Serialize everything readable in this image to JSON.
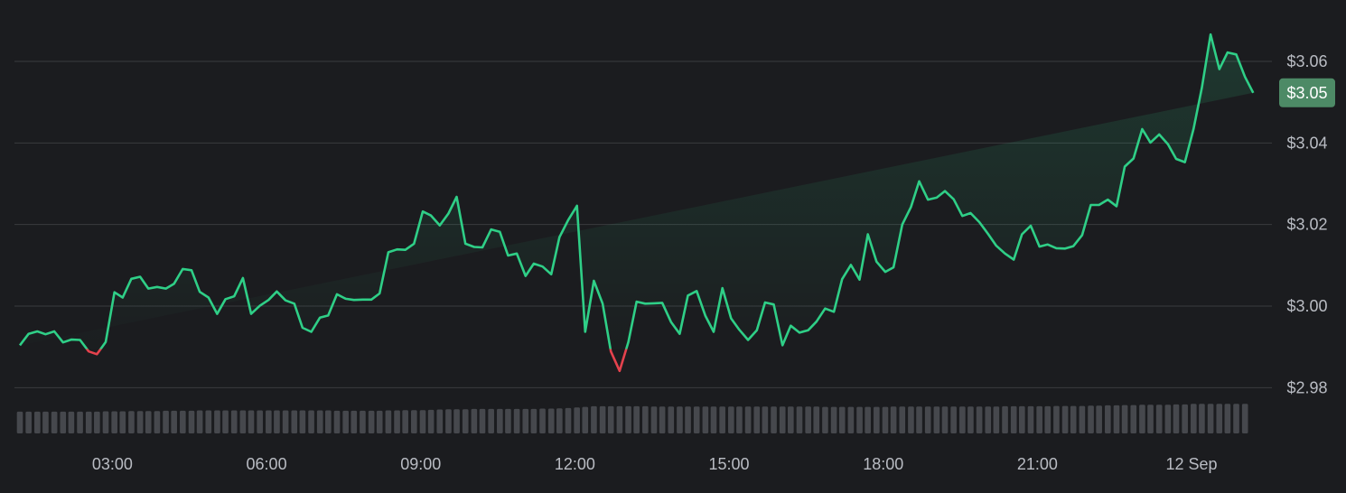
{
  "chart_data": {
    "type": "line",
    "title": "",
    "xlabel": "",
    "ylabel": "",
    "y_tick_labels": [
      "$2.98",
      "$3.00",
      "$3.02",
      "$3.04",
      "$3.06"
    ],
    "y_ticks": [
      2.98,
      3.0,
      3.02,
      3.04,
      3.06
    ],
    "ylim": [
      2.9745,
      3.0675
    ],
    "x_tick_labels": [
      "03:00",
      "06:00",
      "09:00",
      "12:00",
      "15:00",
      "18:00",
      "21:00",
      "12 Sep"
    ],
    "x_ticks_hours": [
      3,
      6,
      9,
      12,
      15,
      18,
      21,
      24
    ],
    "xlim_hours": [
      1.2,
      25.3
    ],
    "reference_price": 2.9895,
    "last_price_label": "$3.05",
    "last_price": 3.0523,
    "grid": true,
    "colors": {
      "up": "#2fcf87",
      "down": "#e5424d",
      "grid": "#3a3b3f",
      "background": "#1b1c1f",
      "volume": "#46484d",
      "label_bg": "#4d8a66"
    },
    "series": [
      {
        "x_hours": [
          1.2,
          1.37,
          1.54,
          1.7,
          1.87,
          2.04,
          2.2,
          2.37,
          2.54,
          2.7,
          2.87,
          3.04,
          3.2,
          3.37,
          3.54,
          3.7,
          3.87,
          4.04,
          4.2,
          4.37,
          4.54,
          4.7,
          4.87,
          5.04,
          5.2,
          5.37,
          5.54,
          5.7,
          5.87,
          6.04,
          6.2,
          6.37,
          6.54,
          6.7,
          6.87,
          7.04,
          7.2,
          7.37,
          7.54,
          7.7,
          7.87,
          8.04,
          8.2,
          8.37,
          8.54,
          8.7,
          8.87,
          9.04,
          9.2,
          9.37,
          9.54,
          9.7,
          9.87,
          10.04,
          10.2,
          10.37,
          10.54,
          10.7,
          10.87,
          11.04,
          11.2,
          11.37,
          11.54,
          11.7,
          11.87,
          12.04,
          12.2,
          12.37,
          12.54,
          12.7,
          12.87,
          13.04,
          13.2,
          13.37,
          13.54,
          13.7,
          13.87,
          14.04,
          14.2,
          14.37,
          14.54,
          14.7,
          14.87,
          15.04,
          15.2,
          15.37,
          15.54,
          15.7,
          15.87,
          16.04,
          16.2,
          16.37,
          16.54,
          16.7,
          16.87,
          17.04,
          17.2,
          17.37,
          17.54,
          17.7,
          17.87,
          18.04,
          18.2,
          18.37,
          18.54,
          18.7,
          18.87,
          19.04,
          19.2,
          19.37,
          19.54,
          19.7,
          19.87,
          20.04,
          20.2,
          20.37,
          20.54,
          20.7,
          20.87,
          21.04,
          21.2,
          21.37,
          21.54,
          21.7,
          21.87,
          22.04,
          22.2,
          22.37,
          22.54,
          22.7,
          22.87,
          23.04,
          23.2,
          23.37,
          23.54,
          23.7,
          23.87,
          24.04,
          24.2,
          24.37,
          24.54,
          24.7,
          24.87,
          25.04,
          25.2,
          25.3
        ],
        "price": [
          2.9904,
          2.9932,
          2.9938,
          2.9931,
          2.9938,
          2.9911,
          2.9918,
          2.9917,
          2.9889,
          2.9882,
          2.9912,
          3.0034,
          3.0021,
          3.0067,
          3.0072,
          3.0043,
          3.0047,
          3.0043,
          3.0055,
          3.0091,
          3.0088,
          3.0035,
          3.0021,
          2.9981,
          3.0017,
          3.0024,
          3.0069,
          2.9981,
          3.0001,
          3.0015,
          3.0036,
          3.0014,
          3.0006,
          2.9947,
          2.9937,
          2.9972,
          2.9977,
          3.0029,
          3.0018,
          3.0015,
          3.0016,
          3.0016,
          3.0031,
          3.0132,
          3.0139,
          3.0138,
          3.0153,
          3.0232,
          3.0222,
          3.0198,
          3.0227,
          3.0268,
          3.0153,
          3.0145,
          3.0144,
          3.0188,
          3.0182,
          3.0124,
          3.0129,
          3.0074,
          3.0104,
          3.0097,
          3.0078,
          3.0169,
          3.0211,
          3.0246,
          2.9937,
          3.0062,
          3.0006,
          2.9889,
          2.9841,
          2.9912,
          3.0011,
          3.0006,
          3.0007,
          3.0008,
          2.9961,
          2.9932,
          3.0026,
          3.0037,
          2.9976,
          2.9937,
          3.0044,
          2.997,
          2.9942,
          2.9917,
          2.9941,
          3.0009,
          3.0004,
          2.9904,
          2.9952,
          2.9935,
          2.9941,
          2.9962,
          2.9994,
          2.9986,
          3.0066,
          3.0101,
          3.0065,
          3.0176,
          3.0109,
          3.0084,
          3.0095,
          3.02,
          3.0243,
          3.0306,
          3.0261,
          3.0266,
          3.0282,
          3.0262,
          3.0221,
          3.0228,
          3.0206,
          3.0177,
          3.0148,
          3.0129,
          3.0114,
          3.0176,
          3.0197,
          3.0146,
          3.0151,
          3.0142,
          3.0141,
          3.0147,
          3.0174,
          3.0248,
          3.0248,
          3.0261,
          3.0245,
          3.0342,
          3.0362,
          3.0434,
          3.0401,
          3.0421,
          3.0397,
          3.0361,
          3.0353,
          3.0435,
          3.0535,
          3.0666,
          3.0581,
          3.0622,
          3.0617,
          3.0562,
          3.0523
        ],
        "volume_hint": [
          0.55,
          0.55,
          0.55,
          0.55,
          0.55,
          0.55,
          0.55,
          0.55,
          0.55,
          0.55,
          0.56,
          0.56,
          0.56,
          0.57,
          0.57,
          0.57,
          0.57,
          0.58,
          0.58,
          0.58,
          0.58,
          0.59,
          0.59,
          0.59,
          0.59,
          0.59,
          0.59,
          0.59,
          0.59,
          0.59,
          0.59,
          0.59,
          0.59,
          0.59,
          0.59,
          0.59,
          0.59,
          0.58,
          0.58,
          0.58,
          0.58,
          0.58,
          0.58,
          0.59,
          0.59,
          0.6,
          0.6,
          0.6,
          0.61,
          0.62,
          0.63,
          0.63,
          0.63,
          0.64,
          0.64,
          0.64,
          0.64,
          0.64,
          0.64,
          0.64,
          0.64,
          0.65,
          0.65,
          0.66,
          0.67,
          0.69,
          0.71,
          0.73,
          0.73,
          0.73,
          0.73,
          0.73,
          0.73,
          0.73,
          0.72,
          0.72,
          0.72,
          0.72,
          0.72,
          0.72,
          0.72,
          0.72,
          0.72,
          0.72,
          0.72,
          0.72,
          0.72,
          0.72,
          0.72,
          0.72,
          0.72,
          0.72,
          0.72,
          0.72,
          0.71,
          0.71,
          0.71,
          0.71,
          0.71,
          0.71,
          0.71,
          0.71,
          0.72,
          0.72,
          0.72,
          0.72,
          0.72,
          0.72,
          0.72,
          0.72,
          0.72,
          0.72,
          0.72,
          0.72,
          0.72,
          0.73,
          0.73,
          0.73,
          0.73,
          0.73,
          0.73,
          0.74,
          0.74,
          0.74,
          0.74,
          0.75,
          0.75,
          0.76,
          0.76,
          0.77,
          0.77,
          0.78,
          0.78,
          0.78,
          0.78,
          0.79,
          0.79,
          0.81,
          0.81,
          0.81,
          0.81,
          0.81,
          0.81,
          0.81
        ]
      }
    ]
  }
}
